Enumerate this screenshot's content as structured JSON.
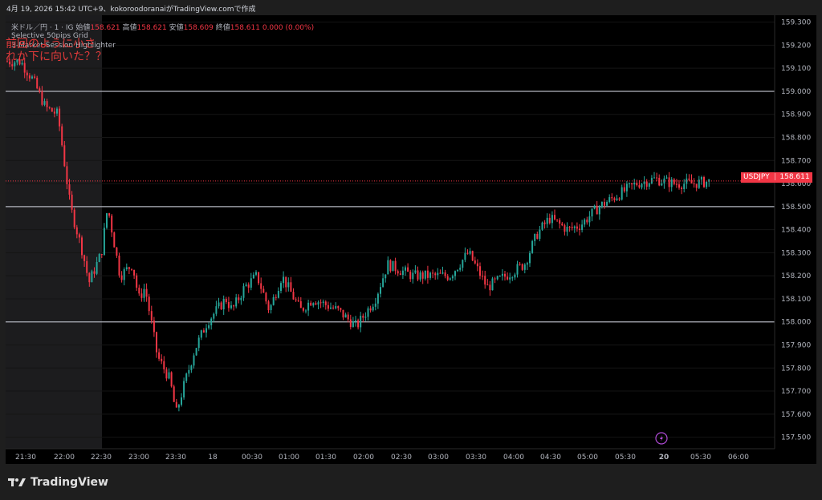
{
  "header": {
    "text": "4月 19, 2026 15:42 UTC+9、kokoroodoranaiがTradingView.comで作成"
  },
  "legend": {
    "symbol": "米ドル／円 · 1 · IG",
    "open_label": "始値",
    "open": "158.621",
    "high_label": "高値",
    "high": "158.621",
    "low_label": "安値",
    "low": "158.609",
    "close_label": "終値",
    "close": "158.611",
    "change": "0.000 (0.00%)",
    "indicator1": "Selective 50pips Grid",
    "indicator2": "3-Market Session Highlighter"
  },
  "annotations": {
    "line1": "前回のように小さ",
    "line2": "れか下に向いた？？"
  },
  "price_tag": {
    "symbol": "USDJPY",
    "value": "158.611"
  },
  "brand": {
    "name": "TradingView"
  },
  "colors": {
    "up": "#26a69a",
    "down": "#f23645",
    "grid_line": "#b2b5be",
    "background": "#000000",
    "session_shade": "#1c1c1e",
    "last_price_line": "#f23645",
    "alert_icon": "#b04ad6"
  },
  "chart_data": {
    "type": "candlestick",
    "symbol": "USDJPY",
    "timeframe": "1",
    "y_range": [
      157.45,
      159.33
    ],
    "y_ticks": [
      "159.300",
      "159.200",
      "159.100",
      "159.000",
      "158.900",
      "158.800",
      "158.700",
      "158.600",
      "158.500",
      "158.400",
      "158.300",
      "158.200",
      "158.100",
      "158.000",
      "157.900",
      "157.800",
      "157.700",
      "157.600",
      "157.500"
    ],
    "x_ticks": [
      "21:30",
      "22:00",
      "22:30",
      "23:00",
      "23:30",
      "18",
      "00:30",
      "01:00",
      "01:30",
      "02:00",
      "02:30",
      "03:00",
      "03:30",
      "04:00",
      "04:30",
      "05:00",
      "05:30",
      "20",
      "05:30",
      "06:00"
    ],
    "horizontal_levels": [
      159.0,
      158.5,
      158.0
    ],
    "last_price": 158.611,
    "session_shade_range": [
      "21:30",
      "22:30"
    ],
    "price_path": [
      [
        "21:30",
        159.13
      ],
      [
        "21:40",
        159.05
      ],
      [
        "21:50",
        158.93
      ],
      [
        "22:00",
        158.9
      ],
      [
        "22:05",
        158.7
      ],
      [
        "22:10",
        158.5
      ],
      [
        "22:20",
        158.3
      ],
      [
        "22:25",
        158.17
      ],
      [
        "22:35",
        158.3
      ],
      [
        "22:40",
        158.5
      ],
      [
        "22:50",
        158.2
      ],
      [
        "23:00",
        158.25
      ],
      [
        "23:05",
        158.1
      ],
      [
        "23:10",
        158.15
      ],
      [
        "23:20",
        157.85
      ],
      [
        "23:30",
        157.75
      ],
      [
        "23:35",
        157.6
      ],
      [
        "23:40",
        157.7
      ],
      [
        "23:50",
        157.88
      ],
      [
        "24:00",
        158.0
      ],
      [
        "24:15",
        158.1
      ],
      [
        "24:20",
        158.05
      ],
      [
        "24:30",
        158.15
      ],
      [
        "24:40",
        158.2
      ],
      [
        "24:50",
        158.05
      ],
      [
        "25:00",
        158.2
      ],
      [
        "25:15",
        158.05
      ],
      [
        "25:25",
        158.1
      ],
      [
        "25:45",
        158.05
      ],
      [
        "26:00",
        157.98
      ],
      [
        "26:15",
        158.1
      ],
      [
        "26:25",
        158.25
      ],
      [
        "26:45",
        158.2
      ],
      [
        "27:00",
        158.2
      ],
      [
        "27:15",
        158.2
      ],
      [
        "27:30",
        158.3
      ],
      [
        "27:45",
        158.15
      ],
      [
        "28:00",
        158.2
      ],
      [
        "28:15",
        158.25
      ],
      [
        "28:25",
        158.38
      ],
      [
        "28:35",
        158.45
      ],
      [
        "28:50",
        158.4
      ],
      [
        "29:00",
        158.42
      ],
      [
        "29:15",
        158.5
      ],
      [
        "29:30",
        158.55
      ],
      [
        "29:45",
        158.6
      ],
      [
        "30:00",
        158.62
      ],
      [
        "30:15",
        158.6
      ],
      [
        "30:30",
        158.6
      ],
      [
        "30:45",
        158.61
      ]
    ]
  }
}
